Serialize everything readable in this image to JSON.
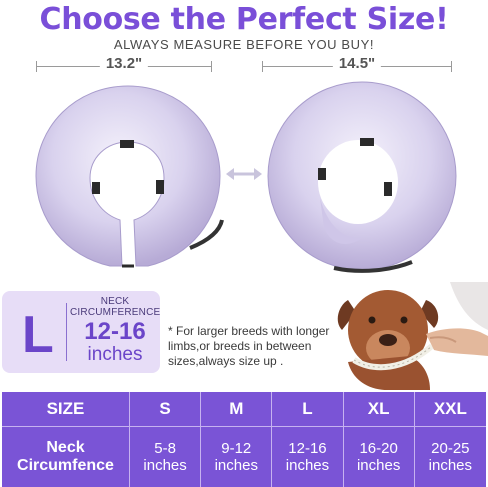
{
  "header": {
    "title": "Choose the Perfect Size!",
    "subtitle": "ALWAYS MEASURE BEFORE YOU BUY!"
  },
  "measurements": {
    "left": "13.2\"",
    "right": "14.5\""
  },
  "size_badge": {
    "letter": "L",
    "caption_line1": "NECK",
    "caption_line2": "CIRCUMFERENCE",
    "range": "12-16",
    "unit": "inches"
  },
  "note": "* For larger breeds with longer limbs,or breeds in between sizes,always size up .",
  "size_table": {
    "header_label": "SIZE",
    "sizes": [
      "S",
      "M",
      "L",
      "XL",
      "XXL"
    ],
    "row_label_line1": "Neck",
    "row_label_line2": "Circumfence",
    "ranges": [
      "5-8",
      "9-12",
      "12-16",
      "16-20",
      "20-25"
    ],
    "unit": "inches"
  },
  "colors": {
    "accent": "#7a4fd8",
    "table_bg": "#7a54d6",
    "badge_bg": "#e7ddf7",
    "collar": "#d9d2ee"
  }
}
